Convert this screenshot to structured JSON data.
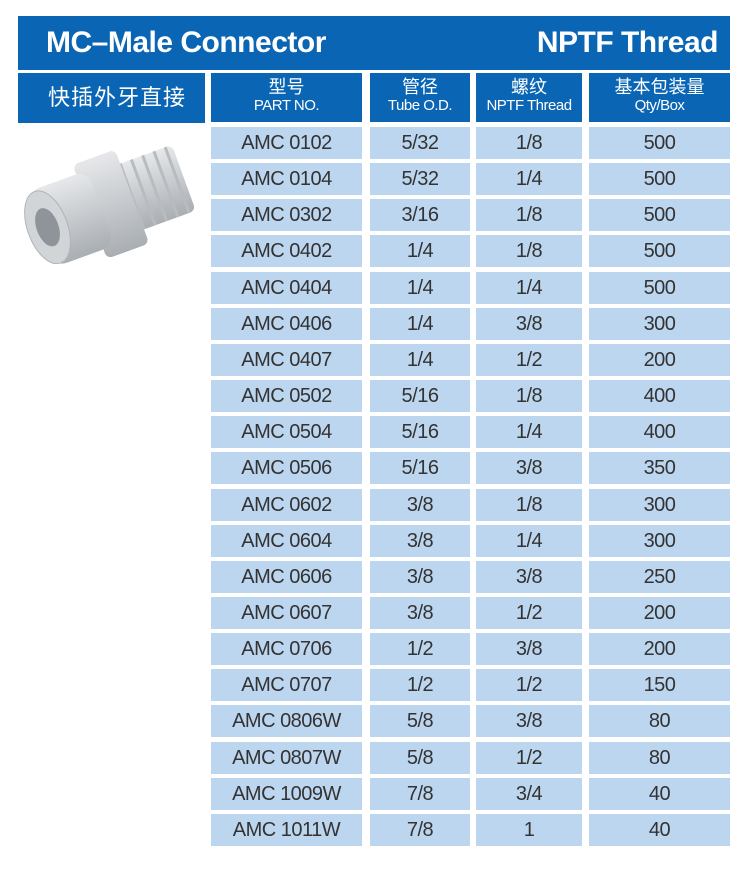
{
  "header": {
    "title": "MC–Male Connector",
    "thread": "NPTF Thread",
    "cn_label": "快插外牙直接"
  },
  "columns": [
    {
      "cn": "型号",
      "en": "PART NO."
    },
    {
      "cn": "管径",
      "en": "Tube O.D."
    },
    {
      "cn": "螺纹",
      "en": "NPTF Thread"
    },
    {
      "cn": "基本包装量",
      "en": "Qty/Box"
    }
  ],
  "rows": [
    [
      "AMC 0102",
      "5/32",
      "1/8",
      "500"
    ],
    [
      "AMC 0104",
      "5/32",
      "1/4",
      "500"
    ],
    [
      "AMC 0302",
      "3/16",
      "1/8",
      "500"
    ],
    [
      "AMC 0402",
      "1/4",
      "1/8",
      "500"
    ],
    [
      "AMC 0404",
      "1/4",
      "1/4",
      "500"
    ],
    [
      "AMC 0406",
      "1/4",
      "3/8",
      "300"
    ],
    [
      "AMC 0407",
      "1/4",
      "1/2",
      "200"
    ],
    [
      "AMC 0502",
      "5/16",
      "1/8",
      "400"
    ],
    [
      "AMC 0504",
      "5/16",
      "1/4",
      "400"
    ],
    [
      "AMC 0506",
      "5/16",
      "3/8",
      "350"
    ],
    [
      "AMC 0602",
      "3/8",
      "1/8",
      "300"
    ],
    [
      "AMC 0604",
      "3/8",
      "1/4",
      "300"
    ],
    [
      "AMC 0606",
      "3/8",
      "3/8",
      "250"
    ],
    [
      "AMC 0607",
      "3/8",
      "1/2",
      "200"
    ],
    [
      "AMC 0706",
      "1/2",
      "3/8",
      "200"
    ],
    [
      "AMC 0707",
      "1/2",
      "1/2",
      "150"
    ],
    [
      "AMC 0806W",
      "5/8",
      "3/8",
      "80"
    ],
    [
      "AMC 0807W",
      "5/8",
      "1/2",
      "80"
    ],
    [
      "AMC 1009W",
      "7/8",
      "3/4",
      "40"
    ],
    [
      "AMC 1011W",
      "7/8",
      "1",
      "40"
    ]
  ],
  "colors": {
    "header_blue": "#0a66b4",
    "cell_blue": "#bdd6ef"
  }
}
